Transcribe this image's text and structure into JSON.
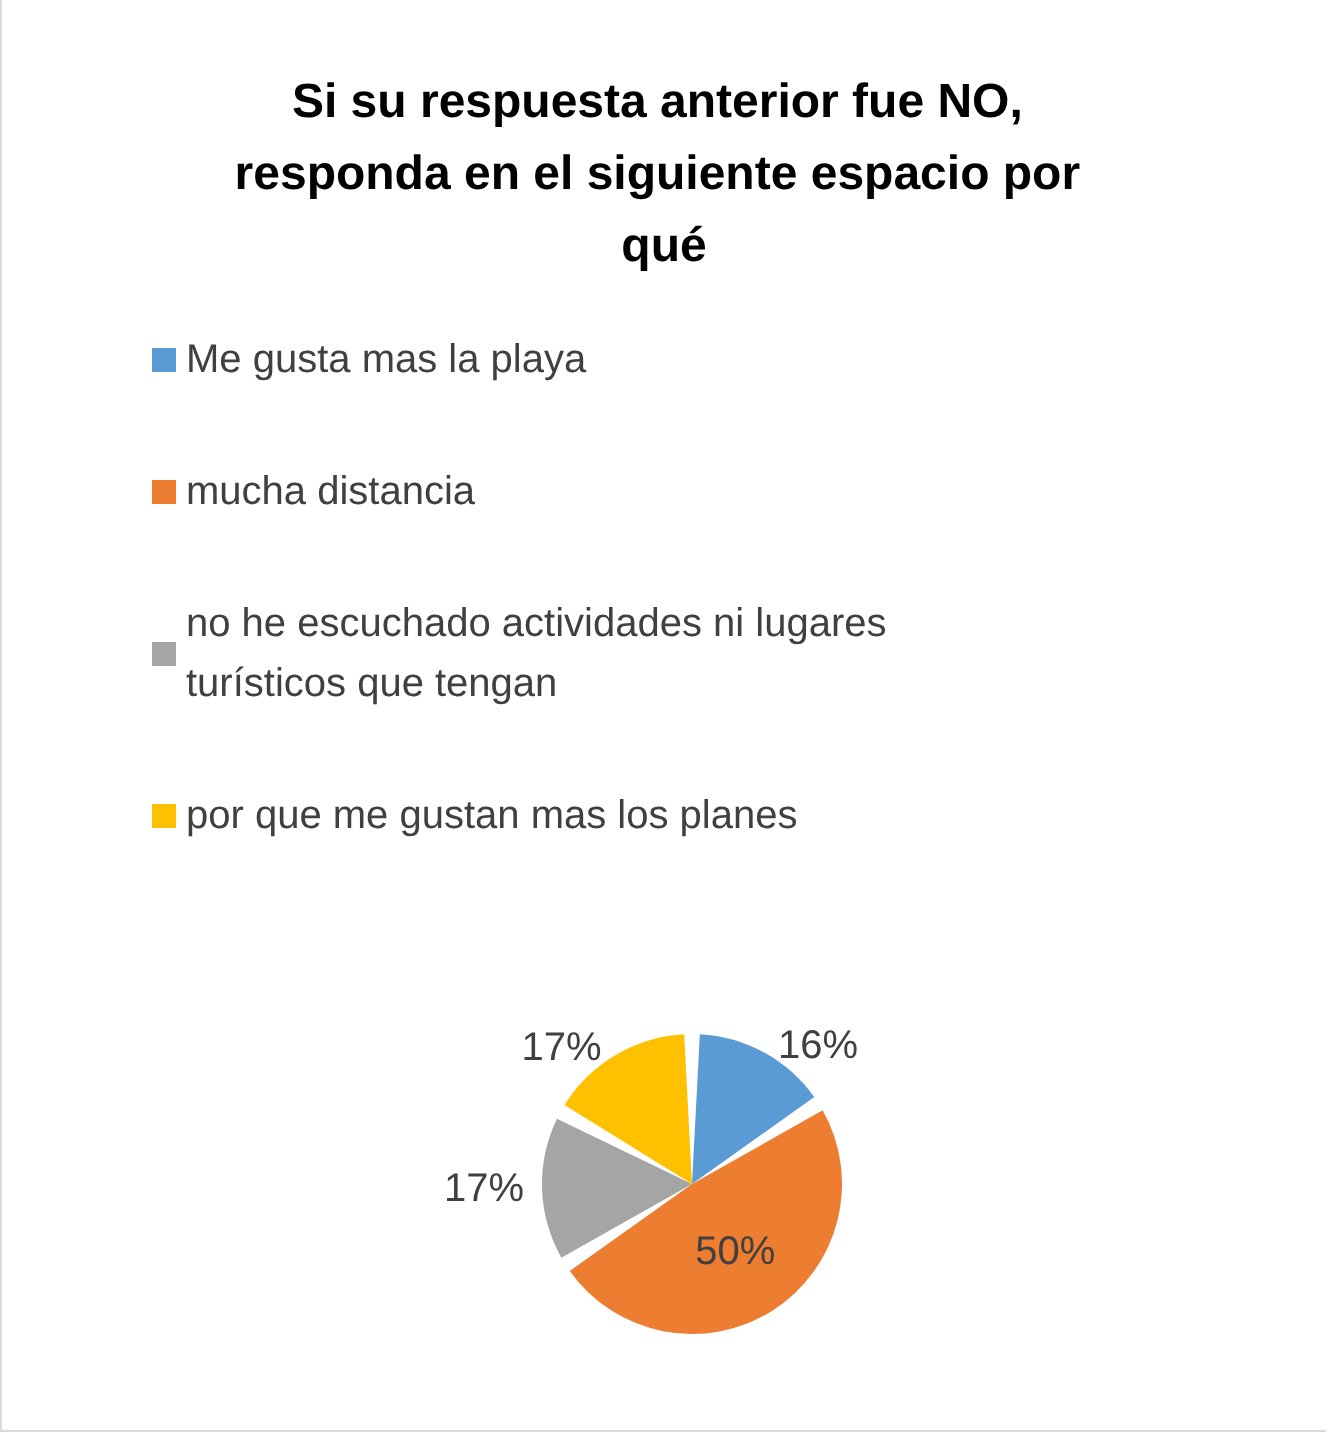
{
  "chart_data": {
    "type": "pie",
    "title": "Si su respuesta anterior fue NO, responda en el siguiente espacio por qué",
    "categories": [
      "Me gusta mas la playa",
      "mucha distancia",
      "no he escuchado actividades ni lugares turísticos que tengan",
      "por que me gustan mas los planes"
    ],
    "values": [
      16,
      50,
      17,
      17
    ],
    "colors": [
      "#5b9bd5",
      "#ed7d31",
      "#a5a5a5",
      "#ffc000"
    ],
    "value_labels": [
      "16%",
      "50%",
      "17%",
      "17%"
    ],
    "legend": "top"
  }
}
